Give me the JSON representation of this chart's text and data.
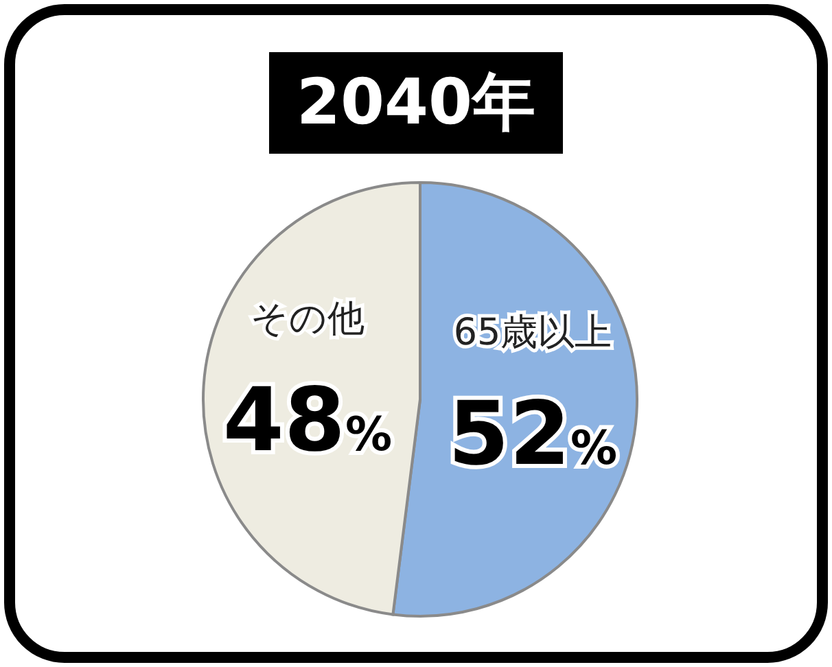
{
  "chart_data": {
    "type": "pie",
    "title": "2040年",
    "categories": [
      "65歳以上",
      "その他"
    ],
    "values": [
      52,
      48
    ],
    "colors": [
      "#8db3e2",
      "#eeece1"
    ],
    "value_labels": [
      "52%",
      "48%"
    ]
  }
}
